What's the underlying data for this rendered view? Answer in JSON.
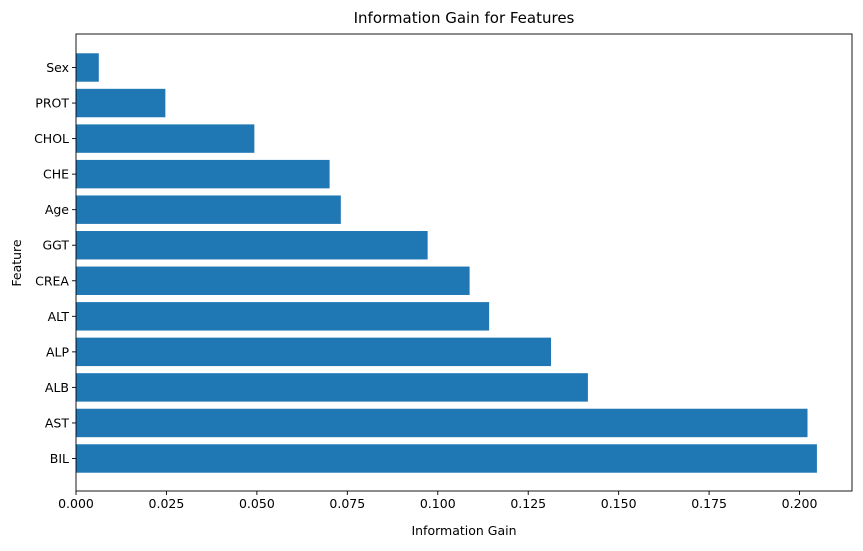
{
  "chart_data": {
    "type": "bar",
    "orientation": "horizontal",
    "title": "Information Gain for Features",
    "xlabel": "Information Gain",
    "ylabel": "Feature",
    "categories": [
      "BIL",
      "AST",
      "ALB",
      "ALP",
      "ALT",
      "CREA",
      "GGT",
      "Age",
      "CHE",
      "CHOL",
      "PROT",
      "Sex"
    ],
    "values": [
      0.2048,
      0.2022,
      0.1415,
      0.1313,
      0.1142,
      0.1088,
      0.0972,
      0.0732,
      0.0701,
      0.0493,
      0.0247,
      0.0063
    ],
    "xlim": [
      0,
      0.2145
    ],
    "xticks": [
      "0.000",
      "0.025",
      "0.050",
      "0.075",
      "0.100",
      "0.125",
      "0.150",
      "0.175",
      "0.200"
    ],
    "bar_color": "#1f77b4",
    "grid": false,
    "legend": false
  }
}
